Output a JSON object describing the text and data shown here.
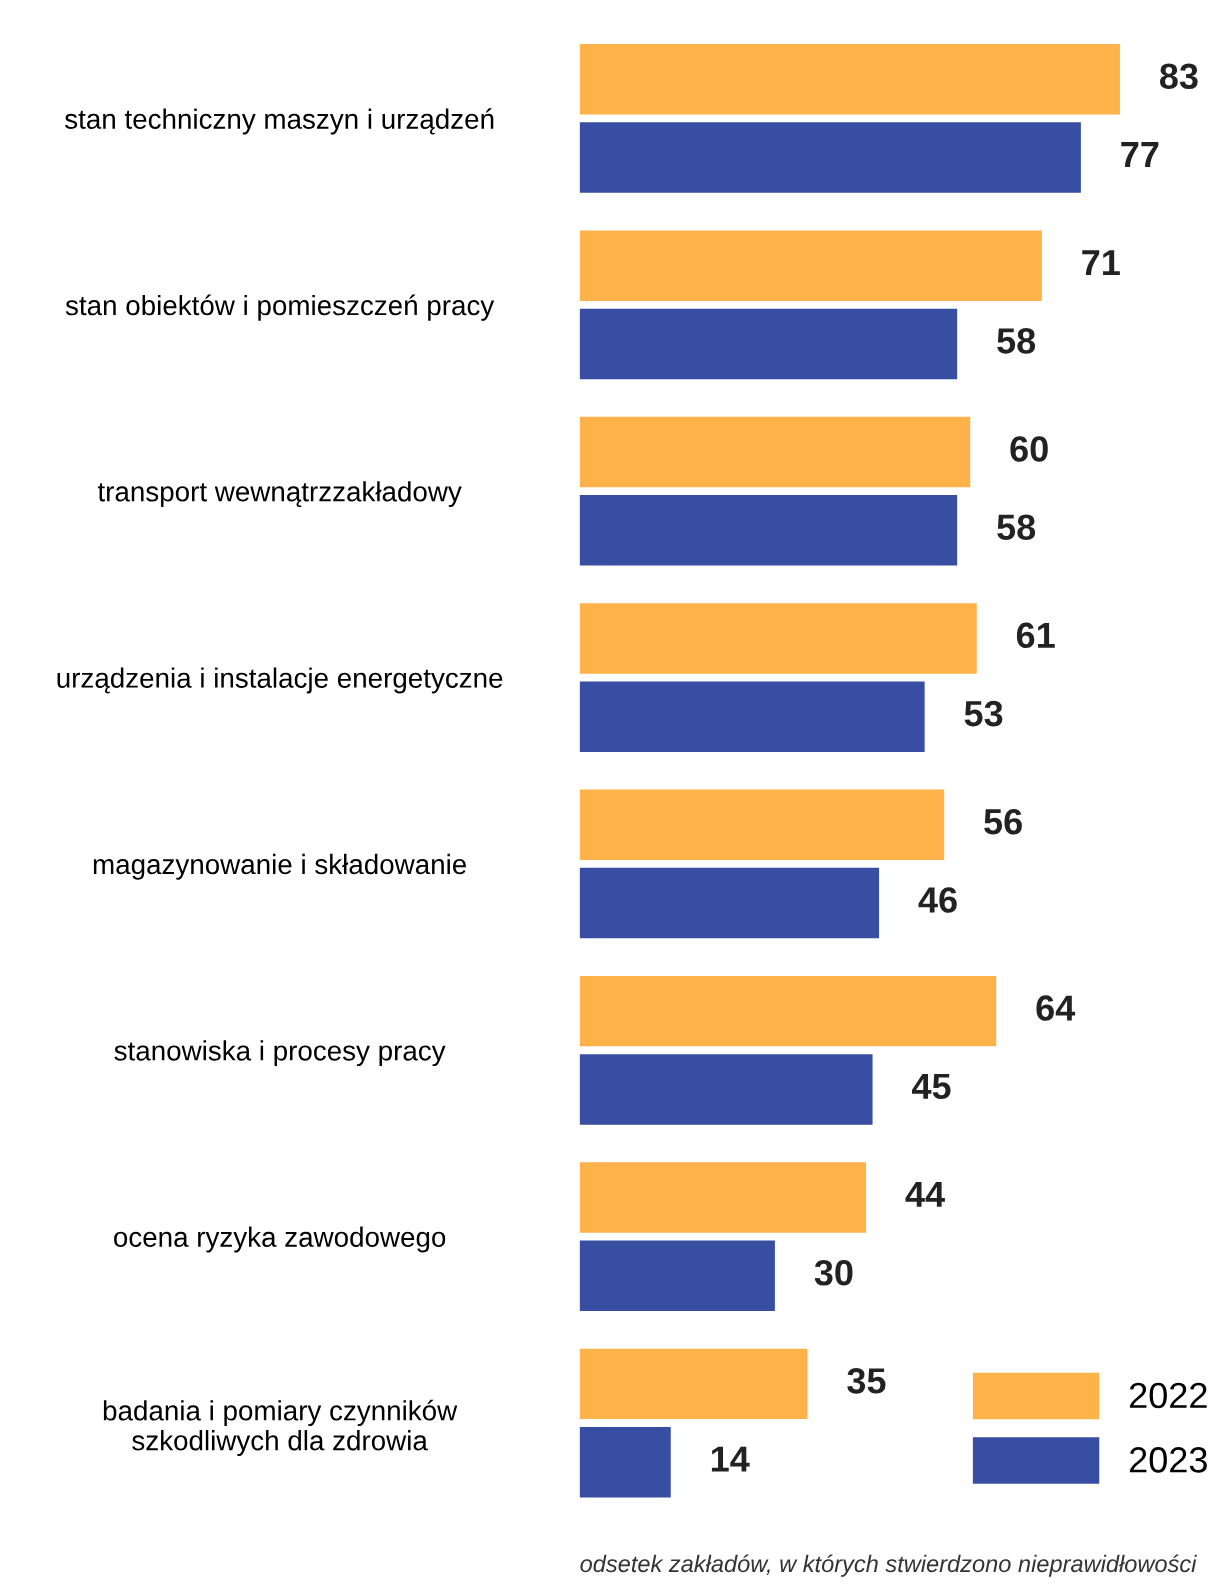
{
  "chart_data": {
    "type": "bar",
    "orientation": "horizontal",
    "data_labels": true,
    "legend": "bottom right",
    "grid": false,
    "categories": [
      "stan techniczny maszyn i urządzeń",
      "stan obiektów i pomieszczeń pracy",
      "transport wewnątrzzakładowy",
      "urządzenia i instalacje energetyczne",
      "magazynowanie i składowanie",
      "stanowiska i procesy pracy",
      "ocena ryzyka zawodowego",
      "badania i pomiary czynników\nszkodliwych dla zdrowia"
    ],
    "series": [
      {
        "name": "2022",
        "color": "#ffb14a",
        "values": [
          83,
          71,
          60,
          61,
          56,
          64,
          44,
          35
        ]
      },
      {
        "name": "2023",
        "color": "#374ea2",
        "values": [
          77,
          58,
          58,
          53,
          46,
          45,
          30,
          14
        ]
      }
    ],
    "annotations": [
      "odsetek zakładów, w których stwierdzono nieprawidłowości"
    ]
  }
}
